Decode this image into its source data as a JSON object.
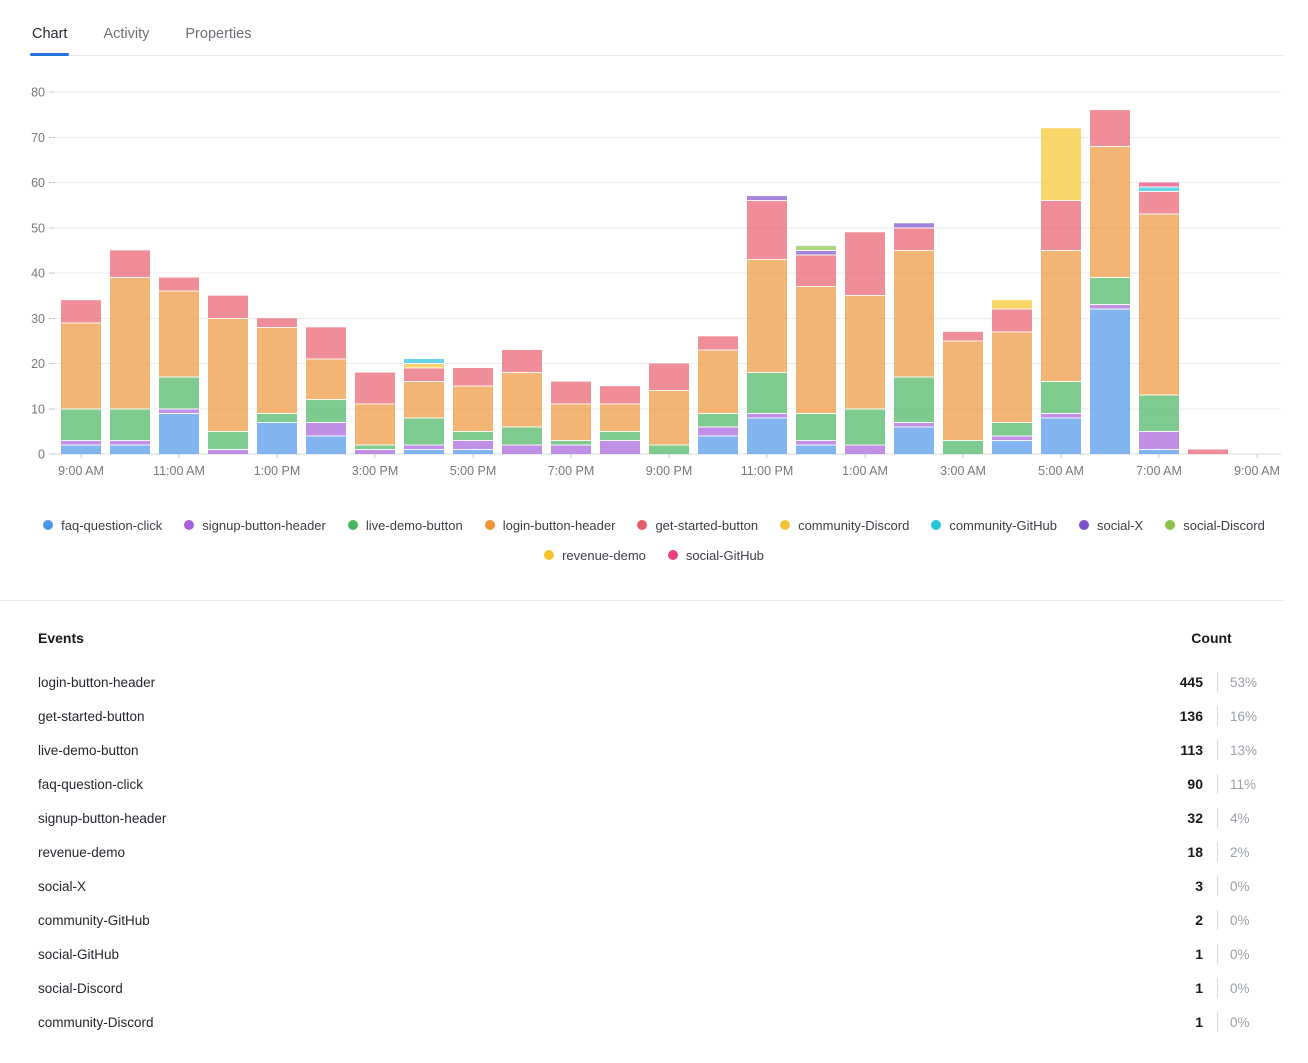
{
  "tabs": [
    {
      "label": "Chart",
      "active": true
    },
    {
      "label": "Activity",
      "active": false
    },
    {
      "label": "Properties",
      "active": false
    }
  ],
  "chart_data": {
    "type": "bar",
    "stacked": true,
    "title": "",
    "xlabel": "",
    "ylabel": "",
    "ylim": [
      0,
      80
    ],
    "y_ticks": [
      0,
      10,
      20,
      30,
      40,
      50,
      60,
      70,
      80
    ],
    "grid": true,
    "bar_opacity": 0.7,
    "x": [
      "9:00 AM",
      "10:00 AM",
      "11:00 AM",
      "12:00 PM",
      "1:00 PM",
      "2:00 PM",
      "3:00 PM",
      "4:00 PM",
      "5:00 PM",
      "6:00 PM",
      "7:00 PM",
      "8:00 PM",
      "9:00 PM",
      "10:00 PM",
      "11:00 PM",
      "12:00 AM",
      "1:00 AM",
      "2:00 AM",
      "3:00 AM",
      "4:00 AM",
      "5:00 AM",
      "6:00 AM",
      "7:00 AM",
      "8:00 AM"
    ],
    "x_tick_labels": [
      "9:00 AM",
      "11:00 AM",
      "1:00 PM",
      "3:00 PM",
      "5:00 PM",
      "7:00 PM",
      "9:00 PM",
      "11:00 PM",
      "1:00 AM",
      "3:00 AM",
      "5:00 AM",
      "7:00 AM",
      "9:00 AM"
    ],
    "series": [
      {
        "name": "faq-question-click",
        "color": "#4D96E8",
        "values": [
          2,
          2,
          9,
          0,
          7,
          4,
          0,
          1,
          1,
          0,
          0,
          0,
          0,
          4,
          8,
          2,
          0,
          6,
          0,
          3,
          8,
          32,
          1,
          0
        ]
      },
      {
        "name": "signup-button-header",
        "color": "#A661DB",
        "values": [
          1,
          1,
          1,
          1,
          0,
          3,
          1,
          1,
          2,
          2,
          2,
          3,
          0,
          2,
          1,
          1,
          2,
          1,
          0,
          1,
          1,
          1,
          4,
          0
        ]
      },
      {
        "name": "live-demo-button",
        "color": "#49B35F",
        "values": [
          7,
          7,
          7,
          4,
          2,
          5,
          1,
          6,
          2,
          4,
          1,
          2,
          2,
          3,
          9,
          6,
          8,
          10,
          3,
          3,
          7,
          6,
          8,
          0
        ]
      },
      {
        "name": "login-button-header",
        "color": "#ED9538",
        "values": [
          19,
          29,
          19,
          25,
          19,
          9,
          9,
          8,
          10,
          12,
          8,
          6,
          12,
          14,
          25,
          28,
          25,
          28,
          22,
          20,
          29,
          29,
          40,
          0
        ]
      },
      {
        "name": "get-started-button",
        "color": "#E85D6E",
        "values": [
          5,
          6,
          3,
          5,
          2,
          7,
          7,
          3,
          4,
          5,
          5,
          4,
          6,
          3,
          13,
          7,
          14,
          5,
          2,
          5,
          11,
          8,
          5,
          1
        ]
      },
      {
        "name": "revenue-demo",
        "color": "#F7C52B",
        "values": [
          0,
          0,
          0,
          0,
          0,
          0,
          0,
          0,
          0,
          0,
          0,
          0,
          0,
          0,
          0,
          0,
          0,
          0,
          0,
          2,
          16,
          0,
          0,
          0
        ]
      },
      {
        "name": "community-Discord",
        "color": "#F3C337",
        "values": [
          0,
          0,
          0,
          0,
          0,
          0,
          0,
          1,
          0,
          0,
          0,
          0,
          0,
          0,
          0,
          0,
          0,
          0,
          0,
          0,
          0,
          0,
          0,
          0
        ]
      },
      {
        "name": "community-GitHub",
        "color": "#27C4DE",
        "values": [
          0,
          0,
          0,
          0,
          0,
          0,
          0,
          1,
          0,
          0,
          0,
          0,
          0,
          0,
          0,
          0,
          0,
          0,
          0,
          0,
          0,
          0,
          1,
          0
        ]
      },
      {
        "name": "social-X",
        "color": "#7C52CC",
        "values": [
          0,
          0,
          0,
          0,
          0,
          0,
          0,
          0,
          0,
          0,
          0,
          0,
          0,
          0,
          1,
          1,
          0,
          1,
          0,
          0,
          0,
          0,
          0,
          0
        ]
      },
      {
        "name": "social-Discord",
        "color": "#8BC34A",
        "values": [
          0,
          0,
          0,
          0,
          0,
          0,
          0,
          0,
          0,
          0,
          0,
          0,
          0,
          0,
          0,
          1,
          0,
          0,
          0,
          0,
          0,
          0,
          0,
          0
        ]
      },
      {
        "name": "social-GitHub",
        "color": "#E8417E",
        "values": [
          0,
          0,
          0,
          0,
          0,
          0,
          0,
          0,
          0,
          0,
          0,
          0,
          0,
          0,
          0,
          0,
          0,
          0,
          0,
          0,
          0,
          0,
          1,
          0
        ]
      }
    ],
    "legend_position": "bottom",
    "legend_rows": [
      [
        "faq-question-click",
        "signup-button-header",
        "live-demo-button",
        "login-button-header",
        "get-started-button",
        "community-Discord",
        "community-GitHub",
        "social-X",
        "social-Discord"
      ],
      [
        "revenue-demo",
        "social-GitHub"
      ]
    ]
  },
  "table": {
    "header": {
      "events": "Events",
      "count": "Count"
    },
    "rows": [
      {
        "name": "login-button-header",
        "count": "445",
        "percent": "53%"
      },
      {
        "name": "get-started-button",
        "count": "136",
        "percent": "16%"
      },
      {
        "name": "live-demo-button",
        "count": "113",
        "percent": "13%"
      },
      {
        "name": "faq-question-click",
        "count": "90",
        "percent": "11%"
      },
      {
        "name": "signup-button-header",
        "count": "32",
        "percent": "4%"
      },
      {
        "name": "revenue-demo",
        "count": "18",
        "percent": "2%"
      },
      {
        "name": "social-X",
        "count": "3",
        "percent": "0%"
      },
      {
        "name": "community-GitHub",
        "count": "2",
        "percent": "0%"
      },
      {
        "name": "social-GitHub",
        "count": "1",
        "percent": "0%"
      },
      {
        "name": "social-Discord",
        "count": "1",
        "percent": "0%"
      },
      {
        "name": "community-Discord",
        "count": "1",
        "percent": "0%"
      }
    ]
  }
}
